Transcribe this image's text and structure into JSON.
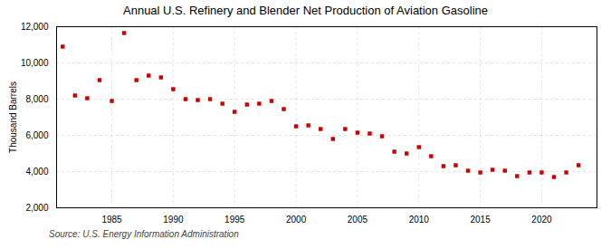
{
  "chart_data": {
    "type": "scatter",
    "title": "Annual U.S. Refinery and Blender Net Production of Aviation Gasoline",
    "ylabel": "Thousand Barrels",
    "source": "Source: U.S. Energy Information Administration",
    "color": "#cc0000",
    "marker": "square",
    "grid": true,
    "x": [
      1981,
      1982,
      1983,
      1984,
      1985,
      1986,
      1987,
      1988,
      1989,
      1990,
      1991,
      1992,
      1993,
      1994,
      1995,
      1996,
      1997,
      1998,
      1999,
      2000,
      2001,
      2002,
      2003,
      2004,
      2005,
      2006,
      2007,
      2008,
      2009,
      2010,
      2011,
      2012,
      2013,
      2014,
      2015,
      2016,
      2017,
      2018,
      2019,
      2020,
      2021,
      2022,
      2023
    ],
    "values": [
      10900,
      8200,
      8050,
      9050,
      7900,
      11650,
      9050,
      9300,
      9200,
      8550,
      8000,
      7950,
      8000,
      7750,
      7300,
      7700,
      7750,
      7900,
      7450,
      6500,
      6550,
      6350,
      5800,
      6350,
      6150,
      6100,
      5950,
      5100,
      5000,
      5350,
      4850,
      4300,
      4350,
      4050,
      3950,
      4100,
      4050,
      3750,
      3950,
      3950,
      3700,
      3950,
      4350
    ],
    "xlim": [
      1980.5,
      2024.5
    ],
    "xticks": [
      1985,
      1990,
      1995,
      2000,
      2005,
      2010,
      2015,
      2020
    ],
    "ylim": [
      2000,
      12000
    ],
    "yticks": [
      {
        "value": 2000,
        "label": "2,000"
      },
      {
        "value": 4000,
        "label": "4,000"
      },
      {
        "value": 6000,
        "label": "6,000"
      },
      {
        "value": 8000,
        "label": "8,000"
      },
      {
        "value": 10000,
        "label": "10,000"
      },
      {
        "value": 12000,
        "label": "12,000"
      }
    ]
  }
}
